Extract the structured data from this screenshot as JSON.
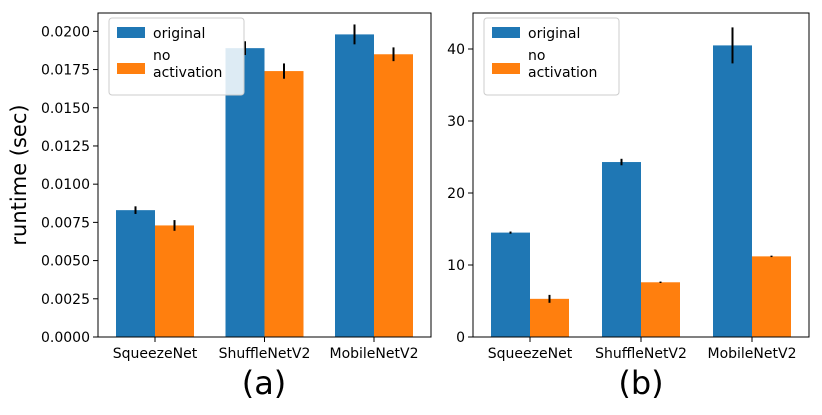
{
  "colors": {
    "original": "#1f77b4",
    "no_activation": "#ff7f0e",
    "error": "#000000"
  },
  "chart_data": [
    {
      "type": "bar",
      "panel_label": "(a)",
      "ylabel": "runtime (sec)",
      "categories": [
        "SqueezeNet",
        "ShuffleNetV2",
        "MobileNetV2"
      ],
      "ylim": [
        0,
        0.0212
      ],
      "yticks": [
        "0.0000",
        "0.0025",
        "0.0050",
        "0.0075",
        "0.0100",
        "0.0125",
        "0.0150",
        "0.0175",
        "0.0200"
      ],
      "legend": {
        "placement": "top-left",
        "entries": [
          "original",
          "no activation"
        ]
      },
      "series": [
        {
          "name": "original",
          "values": [
            0.0083,
            0.0189,
            0.0198
          ],
          "errors": [
            0.00025,
            0.00045,
            0.00065
          ]
        },
        {
          "name": "no activation",
          "values": [
            0.0073,
            0.0174,
            0.0185
          ],
          "errors": [
            0.00035,
            0.0005,
            0.00045
          ]
        }
      ]
    },
    {
      "type": "bar",
      "panel_label": "(b)",
      "ylabel": "",
      "categories": [
        "SqueezeNet",
        "ShuffleNetV2",
        "MobileNetV2"
      ],
      "ylim": [
        0,
        45
      ],
      "yticks": [
        "0",
        "10",
        "20",
        "30",
        "40"
      ],
      "legend": {
        "placement": "top-left",
        "entries": [
          "original",
          "no activation"
        ]
      },
      "series": [
        {
          "name": "original",
          "values": [
            14.5,
            24.3,
            40.5
          ],
          "errors": [
            0.15,
            0.45,
            2.5
          ]
        },
        {
          "name": "no activation",
          "values": [
            5.3,
            7.6,
            11.2
          ],
          "errors": [
            0.55,
            0.1,
            0.1
          ]
        }
      ]
    }
  ]
}
